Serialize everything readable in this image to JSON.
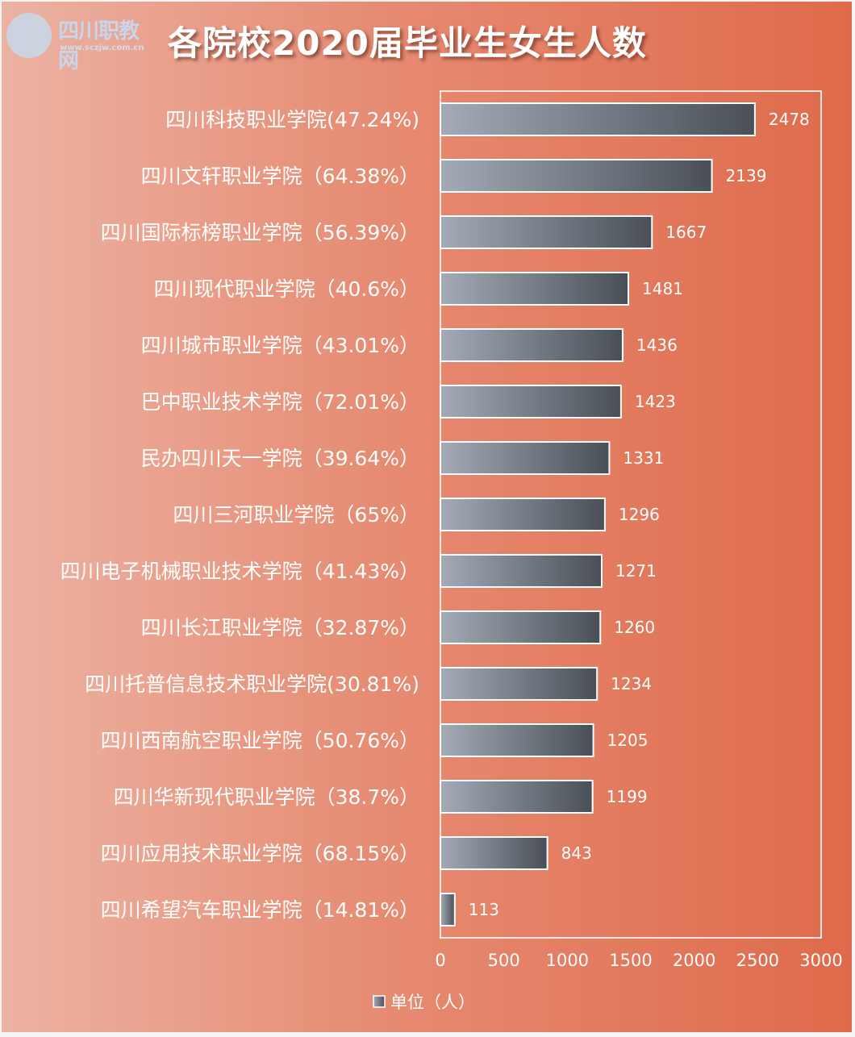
{
  "header": {
    "title": "各院校2020届毕业生女生人数",
    "logo_text": "四川职教网",
    "logo_url": "www.sczjw.com.cn"
  },
  "chart_data": {
    "type": "bar",
    "orientation": "horizontal",
    "title": "各院校2020届毕业生女生人数",
    "categories": [
      "四川科技职业学院(47.24%)",
      "四川文轩职业学院（64.38%）",
      "四川国际标榜职业学院（56.39%）",
      "四川现代职业学院（40.6%）",
      "四川城市职业学院（43.01%）",
      "巴中职业技术学院（72.01%）",
      "民办四川天一学院（39.64%）",
      "四川三河职业学院（65%）",
      "四川电子机械职业技术学院（41.43%）",
      "四川长江职业学院（32.87%）",
      "四川托普信息技术职业学院(30.81%)",
      "四川西南航空职业学院（50.76%）",
      "四川华新现代职业学院（38.7%）",
      "四川应用技术职业学院（68.15%）",
      "四川希望汽车职业学院（14.81%）"
    ],
    "series": [
      {
        "name": "单位（人）",
        "values": [
          2478,
          2139,
          1667,
          1481,
          1436,
          1423,
          1331,
          1296,
          1271,
          1260,
          1234,
          1205,
          1199,
          843,
          113
        ]
      }
    ],
    "xlim": [
      0,
      3000
    ],
    "xticks": [
      0,
      500,
      1000,
      1500,
      2000,
      2500,
      3000
    ],
    "legend": "bottom",
    "grid": false,
    "colors": {
      "bar_start": "#a3abb6",
      "bar_end": "#4a4f57",
      "bar_border": "#ffffff"
    }
  }
}
